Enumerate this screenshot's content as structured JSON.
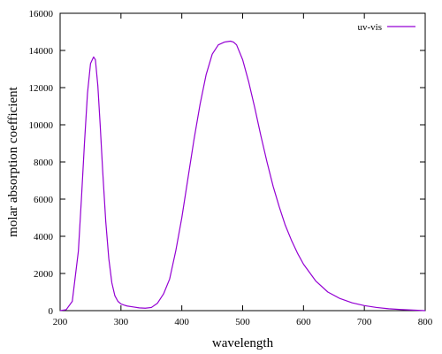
{
  "chart_data": {
    "type": "line",
    "xlabel": "wavelength",
    "ylabel": "molar absorption coefficient",
    "xlim": [
      200,
      800
    ],
    "ylim": [
      0,
      16000
    ],
    "x_ticks": [
      200,
      300,
      400,
      500,
      600,
      700,
      800
    ],
    "y_ticks": [
      0,
      2000,
      4000,
      6000,
      8000,
      10000,
      12000,
      14000,
      16000
    ],
    "grid": false,
    "legend_position": "top-right",
    "series": [
      {
        "name": "uv-vis",
        "color": "#9400d3",
        "x": [
          200,
          210,
          220,
          230,
          235,
          240,
          245,
          250,
          255,
          258,
          262,
          266,
          270,
          275,
          280,
          285,
          290,
          295,
          300,
          305,
          310,
          320,
          330,
          340,
          350,
          360,
          370,
          380,
          390,
          400,
          410,
          420,
          430,
          440,
          450,
          460,
          470,
          480,
          485,
          490,
          500,
          510,
          520,
          530,
          540,
          550,
          560,
          570,
          580,
          590,
          600,
          620,
          640,
          660,
          680,
          700,
          720,
          740,
          760,
          780,
          800
        ],
        "y": [
          0,
          50,
          500,
          3200,
          6000,
          9000,
          11700,
          13300,
          13650,
          13500,
          12100,
          9900,
          7500,
          4800,
          2800,
          1500,
          800,
          500,
          360,
          300,
          250,
          200,
          150,
          130,
          170,
          400,
          900,
          1700,
          3200,
          5000,
          7100,
          9200,
          11100,
          12700,
          13800,
          14300,
          14450,
          14500,
          14450,
          14300,
          13500,
          12300,
          10900,
          9400,
          8000,
          6700,
          5600,
          4600,
          3800,
          3100,
          2500,
          1600,
          1000,
          650,
          420,
          270,
          170,
          100,
          60,
          30,
          0
        ]
      }
    ]
  }
}
